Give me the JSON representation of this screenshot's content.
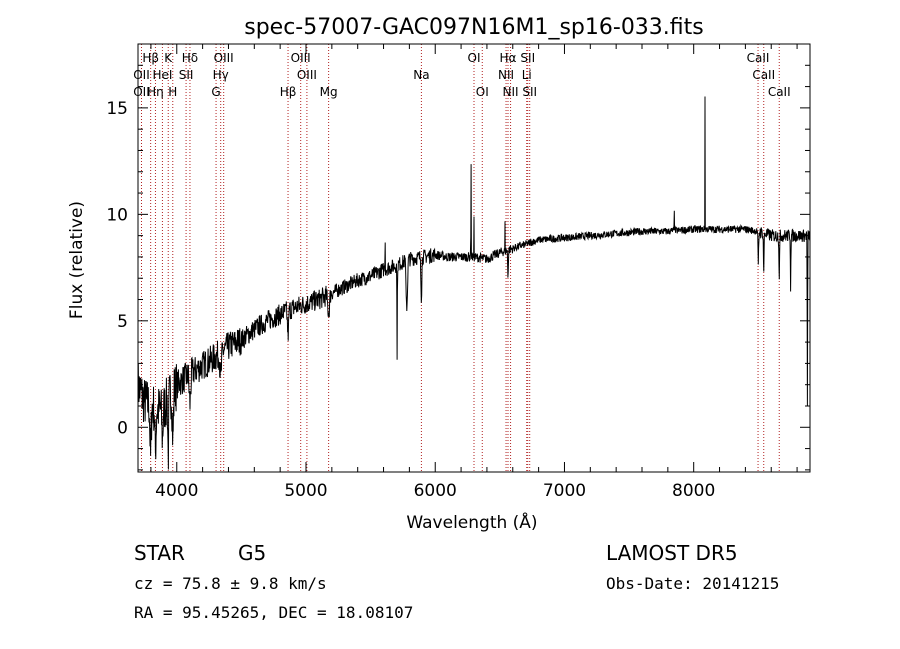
{
  "chart_data": {
    "type": "line",
    "title": "spec-57007-GAC097N16M1_sp16-033.fits",
    "xlabel": "Wavelength (Å)",
    "ylabel": "Flux (relative)",
    "xlim": [
      3700,
      8900
    ],
    "ylim": [
      -2.1,
      18.0
    ],
    "xticks": [
      4000,
      5000,
      6000,
      7000,
      8000
    ],
    "yticks": [
      0,
      5,
      10,
      15
    ],
    "grid": false,
    "line_color": "#000000",
    "marker_line_color": "#b22222",
    "spectrum_nodes": {
      "x": [
        3700,
        3750,
        3800,
        3850,
        3900,
        3950,
        4000,
        4100,
        4200,
        4300,
        4400,
        4500,
        4600,
        4700,
        4800,
        4900,
        5000,
        5100,
        5200,
        5300,
        5400,
        5500,
        5600,
        5700,
        5800,
        5900,
        6000,
        6100,
        6200,
        6300,
        6400,
        6500,
        6600,
        6700,
        6800,
        7000,
        7200,
        7400,
        7600,
        7800,
        8000,
        8200,
        8400,
        8500,
        8600,
        8700,
        8800,
        8900
      ],
      "y": [
        2.0,
        1.2,
        1.0,
        0.8,
        0.9,
        1.5,
        2.0,
        2.5,
        2.9,
        3.3,
        3.8,
        4.1,
        4.6,
        5.0,
        5.3,
        5.6,
        5.8,
        6.0,
        6.3,
        6.6,
        6.9,
        7.1,
        7.4,
        7.6,
        7.9,
        8.0,
        8.1,
        8.0,
        8.0,
        8.0,
        7.9,
        8.2,
        8.4,
        8.6,
        8.8,
        8.9,
        9.0,
        9.1,
        9.2,
        9.2,
        9.3,
        9.3,
        9.3,
        9.2,
        9.0,
        9.0,
        9.0,
        9.0
      ]
    },
    "spectral_features": [
      {
        "x": 3797,
        "y": -1.6,
        "width": 20
      },
      {
        "x": 3835,
        "y": -1.2,
        "width": 20
      },
      {
        "x": 3889,
        "y": -0.6,
        "width": 20
      },
      {
        "x": 3934,
        "y": -1.5,
        "width": 15
      },
      {
        "x": 3970,
        "y": -0.8,
        "width": 20
      },
      {
        "x": 4102,
        "y": 1.0,
        "width": 25
      },
      {
        "x": 4340,
        "y": 2.2,
        "width": 25
      },
      {
        "x": 4861,
        "y": 4.2,
        "width": 20
      },
      {
        "x": 5175,
        "y": 5.3,
        "width": 30
      },
      {
        "x": 5612,
        "y": 9.0,
        "width": 6
      },
      {
        "x": 5705,
        "y": 3.5,
        "width": 8
      },
      {
        "x": 5780,
        "y": 5.5,
        "width": 25
      },
      {
        "x": 5893,
        "y": 6.0,
        "width": 15
      },
      {
        "x": 6277,
        "y": 13.6,
        "width": 5
      },
      {
        "x": 6300,
        "y": 10.0,
        "width": 4
      },
      {
        "x": 6540,
        "y": 9.5,
        "width": 5
      },
      {
        "x": 6563,
        "y": 7.0,
        "width": 12
      },
      {
        "x": 7850,
        "y": 10.3,
        "width": 6
      },
      {
        "x": 8087,
        "y": 17.8,
        "width": 4
      },
      {
        "x": 8500,
        "y": 7.5,
        "width": 12
      },
      {
        "x": 8542,
        "y": 7.2,
        "width": 12
      },
      {
        "x": 8662,
        "y": 7.0,
        "width": 12
      },
      {
        "x": 8750,
        "y": 6.5,
        "width": 8
      },
      {
        "x": 8880,
        "y": 1.0,
        "width": 8
      }
    ],
    "line_markers": [
      {
        "label": "Hβ",
        "x": 3798,
        "row": 0
      },
      {
        "label": "OII",
        "x": 3727,
        "row": 1
      },
      {
        "label": "OII",
        "x": 3727,
        "row": 2
      },
      {
        "label": "Hη",
        "x": 3835,
        "row": 2
      },
      {
        "label": "K",
        "x": 3934,
        "row": 0
      },
      {
        "label": "HeI",
        "x": 3889,
        "row": 1
      },
      {
        "label": "H",
        "x": 3969,
        "row": 2
      },
      {
        "label": "Hδ",
        "x": 4102,
        "row": 0
      },
      {
        "label": "SII",
        "x": 4072,
        "row": 1
      },
      {
        "label": "OIII",
        "x": 4363,
        "row": 0
      },
      {
        "label": "Hγ",
        "x": 4340,
        "row": 1
      },
      {
        "label": "G",
        "x": 4304,
        "row": 2
      },
      {
        "label": "OIII",
        "x": 4959,
        "row": 0
      },
      {
        "label": "OIII",
        "x": 5007,
        "row": 1
      },
      {
        "label": "Hβ",
        "x": 4861,
        "row": 2
      },
      {
        "label": "Mg",
        "x": 5175,
        "row": 2
      },
      {
        "label": "Na",
        "x": 5893,
        "row": 1
      },
      {
        "label": "OI",
        "x": 6300,
        "row": 0
      },
      {
        "label": "OI",
        "x": 6364,
        "row": 2
      },
      {
        "label": "Hα",
        "x": 6563,
        "row": 0
      },
      {
        "label": "NII",
        "x": 6548,
        "row": 1
      },
      {
        "label": "NII",
        "x": 6583,
        "row": 2
      },
      {
        "label": "SII",
        "x": 6716,
        "row": 0
      },
      {
        "label": "Li",
        "x": 6708,
        "row": 1
      },
      {
        "label": "SII",
        "x": 6731,
        "row": 2
      },
      {
        "label": "CaII",
        "x": 8498,
        "row": 0
      },
      {
        "label": "CaII",
        "x": 8542,
        "row": 1
      },
      {
        "label": "CaII",
        "x": 8662,
        "row": 2
      }
    ]
  },
  "info": {
    "class_label": "STAR",
    "subclass": "G5",
    "survey": "LAMOST DR5",
    "cz": "cz = 75.8 ± 9.8 km/s",
    "obs_date": "Obs-Date: 20141215",
    "coords": "RA =  95.45265, DEC =  18.08107"
  }
}
